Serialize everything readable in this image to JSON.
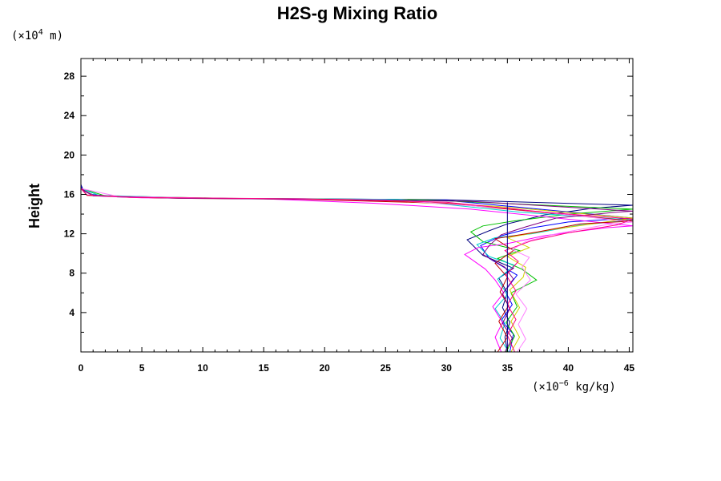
{
  "chart_data": {
    "type": "line",
    "title": "H2S-g Mixing Ratio",
    "xlabel": "",
    "ylabel": "Height",
    "x_unit": {
      "prefix": "(×10",
      "exp": "−6",
      "suffix": " kg/kg)"
    },
    "y_unit": {
      "prefix": "(×10",
      "exp": "4",
      "suffix": " m)"
    },
    "xlim": [
      0,
      45.3
    ],
    "ylim": [
      0,
      29.8
    ],
    "x_ticks": [
      0,
      5,
      10,
      15,
      20,
      25,
      30,
      35,
      40,
      45
    ],
    "x_tick_labels": [
      "0",
      "5",
      "10",
      "15",
      "20",
      "25",
      "30",
      "35",
      "40",
      "45"
    ],
    "y_ticks": [
      4,
      8,
      12,
      16,
      20,
      24,
      28
    ],
    "y_tick_labels": [
      "4",
      "8",
      "12",
      "16",
      "20",
      "24",
      "28"
    ],
    "grid": false,
    "reference_line_x": 35.0,
    "series": [
      {
        "color": "#000080",
        "points": [
          [
            35.0,
            0.0
          ],
          [
            34.8,
            1.5
          ],
          [
            35.2,
            3.0
          ],
          [
            34.6,
            4.5
          ],
          [
            35.0,
            6.0
          ],
          [
            34.3,
            7.5
          ],
          [
            35.5,
            8.5
          ],
          [
            33.0,
            9.8
          ],
          [
            31.7,
            11.4
          ],
          [
            33.5,
            12.3
          ],
          [
            35.0,
            13.0
          ],
          [
            38.0,
            13.9
          ],
          [
            42.0,
            14.6
          ],
          [
            45.3,
            14.9
          ],
          [
            30.0,
            15.45
          ],
          [
            20.0,
            15.55
          ],
          [
            10.0,
            15.6
          ],
          [
            3.0,
            15.75
          ],
          [
            0.8,
            16.0
          ],
          [
            0.2,
            16.4
          ],
          [
            0.0,
            17.0
          ],
          [
            0.0,
            29.8
          ]
        ]
      },
      {
        "color": "#0000ff",
        "points": [
          [
            35.2,
            0.0
          ],
          [
            35.5,
            1.8
          ],
          [
            34.5,
            3.2
          ],
          [
            35.4,
            4.8
          ],
          [
            34.8,
            6.2
          ],
          [
            35.8,
            7.8
          ],
          [
            33.5,
            9.5
          ],
          [
            32.8,
            10.8
          ],
          [
            34.5,
            11.8
          ],
          [
            37.0,
            12.6
          ],
          [
            40.0,
            13.2
          ],
          [
            45.3,
            13.6
          ],
          [
            30.0,
            15.4
          ],
          [
            15.0,
            15.55
          ],
          [
            5.0,
            15.7
          ],
          [
            1.0,
            15.95
          ],
          [
            0.1,
            16.5
          ],
          [
            0.0,
            17.0
          ]
        ]
      },
      {
        "color": "#00c000",
        "points": [
          [
            34.9,
            0.0
          ],
          [
            35.6,
            1.6
          ],
          [
            34.9,
            3.0
          ],
          [
            35.8,
            4.6
          ],
          [
            35.3,
            6.0
          ],
          [
            37.4,
            7.3
          ],
          [
            36.2,
            8.4
          ],
          [
            34.2,
            9.5
          ],
          [
            36.0,
            10.3
          ],
          [
            33.0,
            11.2
          ],
          [
            32.0,
            12.2
          ],
          [
            33.0,
            12.8
          ],
          [
            35.5,
            13.3
          ],
          [
            40.0,
            14.0
          ],
          [
            45.3,
            14.5
          ],
          [
            28.0,
            15.45
          ],
          [
            12.0,
            15.6
          ],
          [
            2.0,
            15.85
          ],
          [
            0.0,
            16.6
          ]
        ]
      },
      {
        "color": "#00d0d0",
        "points": [
          [
            35.1,
            0.0
          ],
          [
            34.4,
            1.4
          ],
          [
            34.8,
            2.9
          ],
          [
            34.0,
            4.4
          ],
          [
            35.0,
            5.8
          ],
          [
            34.2,
            7.4
          ],
          [
            35.6,
            8.8
          ],
          [
            33.5,
            9.7
          ],
          [
            32.5,
            10.9
          ],
          [
            34.0,
            11.6
          ],
          [
            37.0,
            12.0
          ],
          [
            41.0,
            12.9
          ],
          [
            45.3,
            13.4
          ],
          [
            36.0,
            14.2
          ],
          [
            26.0,
            15.5
          ],
          [
            10.0,
            15.6
          ],
          [
            1.5,
            15.9
          ],
          [
            0.0,
            16.6
          ]
        ]
      },
      {
        "color": "#d0d000",
        "points": [
          [
            35.3,
            0.0
          ],
          [
            36.0,
            1.5
          ],
          [
            35.3,
            3.1
          ],
          [
            36.0,
            4.5
          ],
          [
            35.2,
            6.3
          ],
          [
            36.3,
            7.6
          ],
          [
            36.5,
            8.6
          ],
          [
            35.0,
            9.7
          ],
          [
            36.8,
            10.6
          ],
          [
            35.0,
            11.6
          ],
          [
            38.5,
            12.4
          ],
          [
            42.5,
            13.1
          ],
          [
            45.3,
            13.6
          ],
          [
            34.0,
            14.8
          ],
          [
            22.0,
            15.5
          ],
          [
            8.0,
            15.6
          ],
          [
            1.0,
            15.9
          ],
          [
            0.0,
            16.6
          ]
        ]
      },
      {
        "color": "#ff00ff",
        "points": [
          [
            34.5,
            0.0
          ],
          [
            34.0,
            1.5
          ],
          [
            34.6,
            3.0
          ],
          [
            33.8,
            4.6
          ],
          [
            34.7,
            6.0
          ],
          [
            34.0,
            7.3
          ],
          [
            33.2,
            8.4
          ],
          [
            31.5,
            9.9
          ],
          [
            32.6,
            10.6
          ],
          [
            35.0,
            11.0
          ],
          [
            38.0,
            11.8
          ],
          [
            43.0,
            12.6
          ],
          [
            45.3,
            12.8
          ],
          [
            32.0,
            14.5
          ],
          [
            24.0,
            15.1
          ],
          [
            15.0,
            15.55
          ],
          [
            5.0,
            15.65
          ],
          [
            1.0,
            15.85
          ],
          [
            0.0,
            16.6
          ]
        ]
      },
      {
        "color": "#c00000",
        "points": [
          [
            34.2,
            0.0
          ],
          [
            35.0,
            1.5
          ],
          [
            34.3,
            3.1
          ],
          [
            35.1,
            4.7
          ],
          [
            34.4,
            6.1
          ],
          [
            35.0,
            7.6
          ],
          [
            34.0,
            9.0
          ],
          [
            35.5,
            10.3
          ],
          [
            34.0,
            11.5
          ],
          [
            37.5,
            12.2
          ],
          [
            41.0,
            13.0
          ],
          [
            45.3,
            13.3
          ],
          [
            30.0,
            15.1
          ],
          [
            18.0,
            15.5
          ],
          [
            6.0,
            15.65
          ],
          [
            0.5,
            15.9
          ],
          [
            0.0,
            16.6
          ]
        ]
      },
      {
        "color": "#ff80ff",
        "points": [
          [
            35.8,
            0.0
          ],
          [
            36.5,
            1.3
          ],
          [
            35.9,
            2.8
          ],
          [
            36.6,
            4.4
          ],
          [
            35.7,
            5.9
          ],
          [
            36.9,
            7.3
          ],
          [
            36.2,
            8.6
          ],
          [
            36.8,
            9.6
          ],
          [
            35.4,
            10.4
          ],
          [
            36.5,
            11.2
          ],
          [
            39.0,
            12.0
          ],
          [
            43.0,
            12.9
          ],
          [
            45.3,
            13.2
          ],
          [
            35.0,
            14.6
          ],
          [
            25.0,
            15.45
          ],
          [
            12.0,
            15.6
          ],
          [
            3.0,
            15.8
          ],
          [
            0.0,
            16.6
          ]
        ]
      },
      {
        "color": "#800080",
        "points": [
          [
            34.8,
            0.0
          ],
          [
            35.4,
            1.4
          ],
          [
            34.6,
            2.9
          ],
          [
            35.2,
            4.4
          ],
          [
            34.6,
            5.9
          ],
          [
            35.5,
            7.4
          ],
          [
            34.8,
            8.6
          ],
          [
            33.0,
            9.9
          ],
          [
            33.5,
            10.8
          ],
          [
            34.5,
            11.9
          ],
          [
            36.5,
            12.7
          ],
          [
            39.0,
            13.6
          ],
          [
            44.0,
            14.2
          ],
          [
            45.3,
            14.3
          ],
          [
            32.0,
            15.3
          ],
          [
            20.0,
            15.5
          ],
          [
            8.0,
            15.6
          ],
          [
            1.0,
            15.85
          ],
          [
            0.0,
            16.6
          ]
        ]
      },
      {
        "color": "#ff0080",
        "points": [
          [
            35.6,
            0.0
          ],
          [
            35.0,
            1.7
          ],
          [
            35.7,
            3.3
          ],
          [
            35.0,
            4.8
          ],
          [
            35.7,
            6.2
          ],
          [
            34.9,
            7.8
          ],
          [
            35.9,
            9.2
          ],
          [
            34.8,
            10.3
          ],
          [
            37.0,
            11.3
          ],
          [
            40.0,
            12.1
          ],
          [
            44.0,
            12.9
          ],
          [
            45.3,
            13.5
          ],
          [
            38.0,
            14.2
          ],
          [
            30.0,
            15.2
          ],
          [
            18.0,
            15.55
          ],
          [
            4.0,
            15.7
          ],
          [
            0.5,
            15.95
          ],
          [
            0.0,
            16.6
          ]
        ]
      }
    ]
  }
}
